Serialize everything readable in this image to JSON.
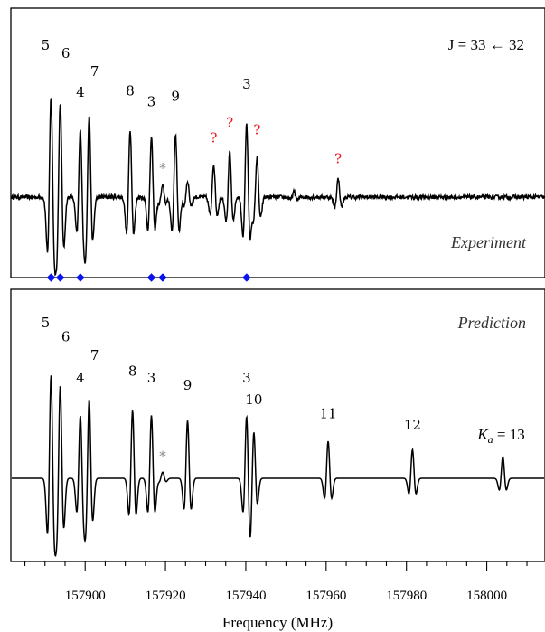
{
  "chart_data": {
    "type": "line",
    "xlabel": "Frequency (MHz)",
    "xlim": [
      157881.5,
      158014.5
    ],
    "x_ticks": [
      157900,
      157920,
      157940,
      157960,
      157980,
      158000
    ],
    "x_tick_labels": [
      "157900",
      "157920",
      "157940",
      "157960",
      "157980",
      "158000"
    ],
    "transition_label": "J = 33 ← 32",
    "panels": [
      {
        "name": "Experiment",
        "label": "Experiment",
        "peaks": [
          {
            "x": 157891.5,
            "h": 1.0,
            "label": "5"
          },
          {
            "x": 157893.8,
            "h": 0.94,
            "label": "6"
          },
          {
            "x": 157898.8,
            "h": 0.66,
            "label": "4"
          },
          {
            "x": 157901.0,
            "h": 0.81,
            "label": "7"
          },
          {
            "x": 157911.2,
            "h": 0.67,
            "label": "8"
          },
          {
            "x": 157916.5,
            "h": 0.59,
            "label": "3"
          },
          {
            "x": 157919.3,
            "h": 0.11,
            "label": "*"
          },
          {
            "x": 157922.5,
            "h": 0.63,
            "label": "9"
          },
          {
            "x": 157925.5,
            "h": 0.16,
            "label": ""
          },
          {
            "x": 157932.0,
            "h": 0.33,
            "label": "?"
          },
          {
            "x": 157936.0,
            "h": 0.44,
            "label": "?"
          },
          {
            "x": 157940.2,
            "h": 0.72,
            "label": "3"
          },
          {
            "x": 157942.8,
            "h": 0.39,
            "label": "?"
          },
          {
            "x": 157952.0,
            "h": 0.05,
            "label": ""
          },
          {
            "x": 157963.0,
            "h": 0.18,
            "label": "?"
          }
        ],
        "markers": [
          157891.5,
          157893.8,
          157898.8,
          157916.5,
          157919.3,
          157940.2
        ]
      },
      {
        "name": "Prediction",
        "label": "Prediction",
        "peaks": [
          {
            "x": 157891.5,
            "h": 1.0,
            "label": "5"
          },
          {
            "x": 157893.8,
            "h": 0.9,
            "label": "6"
          },
          {
            "x": 157898.8,
            "h": 0.61,
            "label": "4"
          },
          {
            "x": 157901.0,
            "h": 0.77,
            "label": "7"
          },
          {
            "x": 157911.8,
            "h": 0.66,
            "label": "8"
          },
          {
            "x": 157916.5,
            "h": 0.61,
            "label": "3"
          },
          {
            "x": 157919.3,
            "h": 0.06,
            "label": "*"
          },
          {
            "x": 157925.5,
            "h": 0.56,
            "label": "9"
          },
          {
            "x": 157940.2,
            "h": 0.61,
            "label": "3"
          },
          {
            "x": 157942.0,
            "h": 0.46,
            "label": "10"
          },
          {
            "x": 157960.5,
            "h": 0.36,
            "label": "11"
          },
          {
            "x": 157981.5,
            "h": 0.28,
            "label": "12"
          },
          {
            "x": 158004.0,
            "h": 0.21,
            "label": "Ka = 13"
          }
        ]
      }
    ],
    "grid": false,
    "colors": {
      "line": "#000000",
      "unassigned": "#e8141c",
      "marker": "#0a14f0",
      "star": "#888888"
    }
  }
}
